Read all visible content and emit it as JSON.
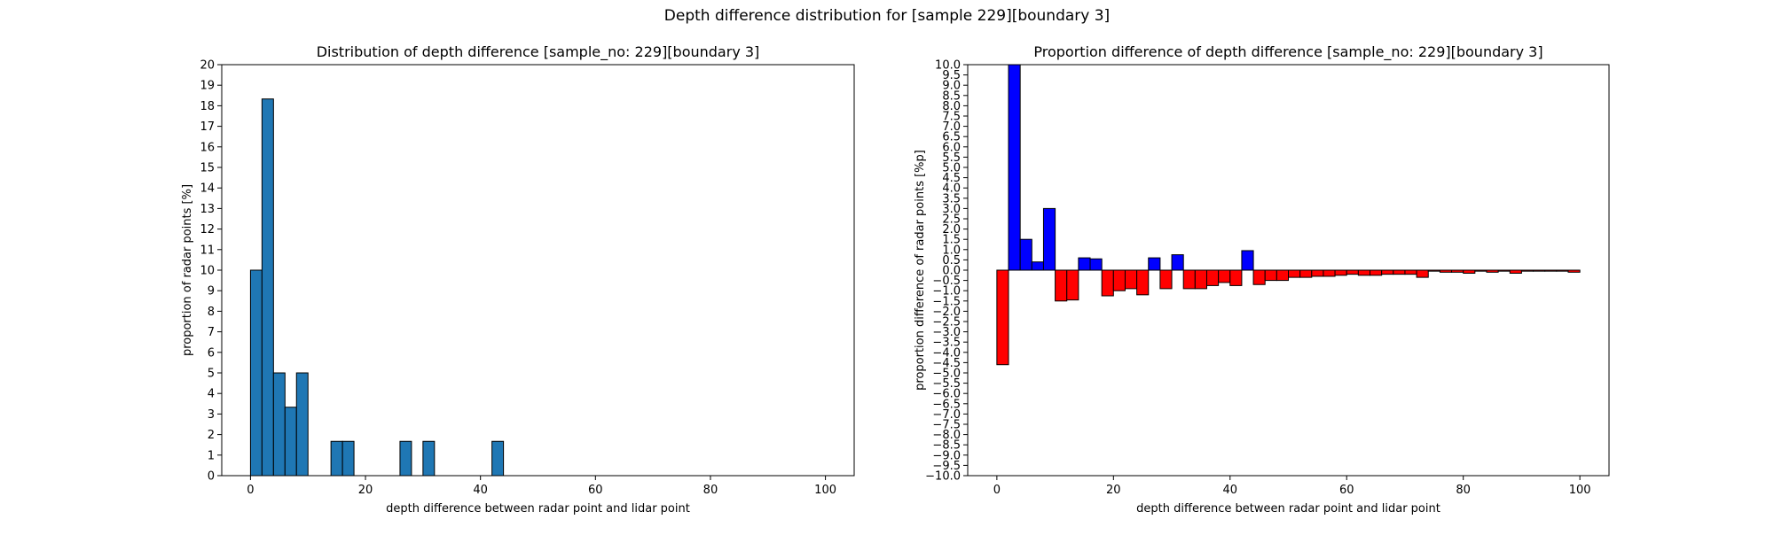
{
  "figure": {
    "suptitle": "Depth difference distribution for [sample 229][boundary 3]"
  },
  "chart_data": [
    {
      "type": "bar",
      "title": "Distribution of depth difference [sample_no: 229][boundary 3]",
      "xlabel": "depth difference between radar point and lidar point",
      "ylabel": "proportion of radar points [%]",
      "xlim": [
        -5,
        105
      ],
      "ylim": [
        0,
        20
      ],
      "xticks": [
        0,
        20,
        40,
        60,
        80,
        100
      ],
      "yticks": [
        0,
        1,
        2,
        3,
        4,
        5,
        6,
        7,
        8,
        9,
        10,
        11,
        12,
        13,
        14,
        15,
        16,
        17,
        18,
        19,
        20
      ],
      "bin_width": 2,
      "bar_color": "#1f77b4",
      "edge_color": "#000000",
      "bins": [
        {
          "x": 0,
          "value": 10.0
        },
        {
          "x": 2,
          "value": 18.33
        },
        {
          "x": 4,
          "value": 5.0
        },
        {
          "x": 6,
          "value": 3.33
        },
        {
          "x": 8,
          "value": 5.0
        },
        {
          "x": 14,
          "value": 1.67
        },
        {
          "x": 16,
          "value": 1.67
        },
        {
          "x": 26,
          "value": 1.67
        },
        {
          "x": 30,
          "value": 1.67
        },
        {
          "x": 42,
          "value": 1.67
        }
      ]
    },
    {
      "type": "bar",
      "title": "Proportion difference of depth difference [sample_no: 229][boundary 3]",
      "xlabel": "depth difference between radar point and lidar point",
      "ylabel": "proportion difference of radar points [%p]",
      "xlim": [
        -5,
        105
      ],
      "ylim": [
        -10,
        10
      ],
      "xticks": [
        0,
        20,
        40,
        60,
        80,
        100
      ],
      "yticks": [
        "-10.0",
        "-9.5",
        "-9.0",
        "-8.5",
        "-8.0",
        "-7.5",
        "-7.0",
        "-6.5",
        "-6.0",
        "-5.5",
        "-5.0",
        "-4.5",
        "-4.0",
        "-3.5",
        "-3.0",
        "-2.5",
        "-2.0",
        "-1.5",
        "-1.0",
        "-0.5",
        "0.0",
        "0.5",
        "1.0",
        "1.5",
        "2.0",
        "2.5",
        "3.0",
        "3.5",
        "4.0",
        "4.5",
        "5.0",
        "5.5",
        "6.0",
        "6.5",
        "7.0",
        "7.5",
        "8.0",
        "8.5",
        "9.0",
        "9.5",
        "10.0"
      ],
      "bin_width": 2,
      "positive_color": "#0000ff",
      "negative_color": "#ff0000",
      "edge_color": "#000000",
      "bins": [
        {
          "x": 0,
          "value": -4.6
        },
        {
          "x": 2,
          "value": 10.0
        },
        {
          "x": 4,
          "value": 1.5
        },
        {
          "x": 6,
          "value": 0.4
        },
        {
          "x": 8,
          "value": 3.0
        },
        {
          "x": 10,
          "value": -1.5
        },
        {
          "x": 12,
          "value": -1.45
        },
        {
          "x": 14,
          "value": 0.6
        },
        {
          "x": 16,
          "value": 0.55
        },
        {
          "x": 18,
          "value": -1.25
        },
        {
          "x": 20,
          "value": -1.0
        },
        {
          "x": 22,
          "value": -0.9
        },
        {
          "x": 24,
          "value": -1.2
        },
        {
          "x": 26,
          "value": 0.6
        },
        {
          "x": 28,
          "value": -0.9
        },
        {
          "x": 30,
          "value": 0.75
        },
        {
          "x": 32,
          "value": -0.9
        },
        {
          "x": 34,
          "value": -0.9
        },
        {
          "x": 36,
          "value": -0.75
        },
        {
          "x": 38,
          "value": -0.6
        },
        {
          "x": 40,
          "value": -0.75
        },
        {
          "x": 42,
          "value": 0.95
        },
        {
          "x": 44,
          "value": -0.7
        },
        {
          "x": 46,
          "value": -0.5
        },
        {
          "x": 48,
          "value": -0.5
        },
        {
          "x": 50,
          "value": -0.35
        },
        {
          "x": 52,
          "value": -0.35
        },
        {
          "x": 54,
          "value": -0.3
        },
        {
          "x": 56,
          "value": -0.3
        },
        {
          "x": 58,
          "value": -0.25
        },
        {
          "x": 60,
          "value": -0.2
        },
        {
          "x": 62,
          "value": -0.25
        },
        {
          "x": 64,
          "value": -0.25
        },
        {
          "x": 66,
          "value": -0.2
        },
        {
          "x": 68,
          "value": -0.2
        },
        {
          "x": 70,
          "value": -0.2
        },
        {
          "x": 72,
          "value": -0.35
        },
        {
          "x": 74,
          "value": -0.05
        },
        {
          "x": 76,
          "value": -0.1
        },
        {
          "x": 78,
          "value": -0.1
        },
        {
          "x": 80,
          "value": -0.15
        },
        {
          "x": 82,
          "value": -0.05
        },
        {
          "x": 84,
          "value": -0.1
        },
        {
          "x": 86,
          "value": -0.05
        },
        {
          "x": 88,
          "value": -0.15
        },
        {
          "x": 90,
          "value": -0.05
        },
        {
          "x": 92,
          "value": -0.05
        },
        {
          "x": 94,
          "value": -0.05
        },
        {
          "x": 96,
          "value": -0.05
        },
        {
          "x": 98,
          "value": -0.1
        }
      ]
    }
  ]
}
